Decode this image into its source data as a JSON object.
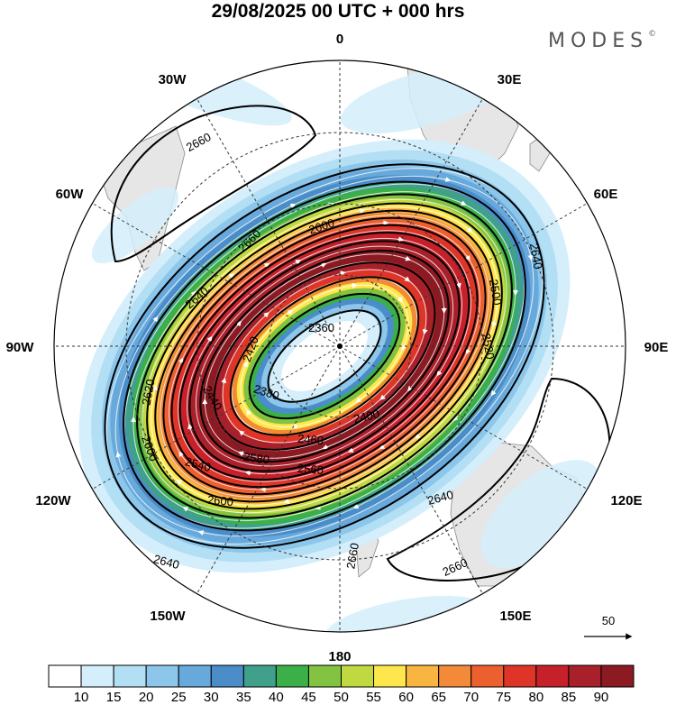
{
  "title": "29/08/2025  00 UTC  + 000 hrs",
  "brand": "MODES",
  "brand_mark": "©",
  "longitude_labels": {
    "lon_0": "0",
    "lon_30e": "30E",
    "lon_60e": "60E",
    "lon_90e": "90E",
    "lon_120e": "120E",
    "lon_150e": "150E",
    "lon_180": "180",
    "lon_150w": "150W",
    "lon_120w": "120W",
    "lon_90w": "90W",
    "lon_60w": "60W",
    "lon_30w": "30W"
  },
  "contour_labels": {
    "c2660_nw": "2660",
    "c2660_w": "2660",
    "c2640_nw": "2640",
    "c2600_n": "2600",
    "c2640_e": "2640",
    "c2500_e": "2500",
    "c2520_e": "2520",
    "c2360": "2360",
    "c2380": "2380",
    "c2400": "2400",
    "c2420": "2420",
    "c2440": "2440",
    "c2460": "2460",
    "c2540": "2540",
    "c2620_w": "2620",
    "c2600_sw": "2600",
    "c2580": "2580",
    "c2560": "2560",
    "c2600_s": "2600",
    "c2640_s": "2640",
    "c2640_sw": "2640",
    "c2660_s": "2660",
    "c2660_se": "2660"
  },
  "vector_reference": "50",
  "colorbar": {
    "ticks": [
      "10",
      "15",
      "20",
      "25",
      "30",
      "35",
      "40",
      "45",
      "50",
      "55",
      "60",
      "65",
      "70",
      "75",
      "80",
      "85",
      "90"
    ],
    "colors": [
      "#ffffff",
      "#d4eefb",
      "#b3dff5",
      "#8cc6ea",
      "#68a9dc",
      "#4a8dc8",
      "#40a08c",
      "#3bb049",
      "#82c341",
      "#c1d940",
      "#fde74c",
      "#f8b541",
      "#f28a37",
      "#ec5f2e",
      "#df3528",
      "#c6202a",
      "#a8202a",
      "#8c1a22"
    ]
  },
  "palette": {
    "land": "#e8e8e8",
    "coast": "#888888",
    "grid": "#222222",
    "contour": "#000000",
    "stream": "#ffffff"
  }
}
